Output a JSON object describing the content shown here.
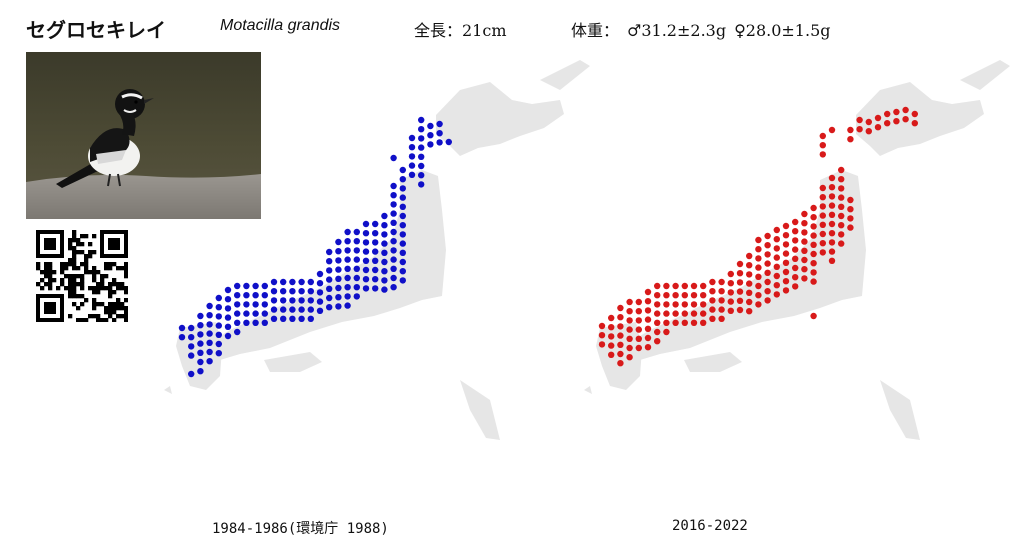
{
  "species": {
    "japanese_name": "セグロセキレイ",
    "scientific_name": "Motacilla grandis",
    "length": "全長：21cm",
    "weight_label": "体重：",
    "weight_male": "♂31.2±2.3g",
    "weight_female": "♀28.0±1.5g"
  },
  "maps": [
    {
      "caption": "1984-1986(環境庁 1988)",
      "dot_color": "#1010c8"
    },
    {
      "caption": "2016-2022",
      "dot_color": "#d81a1a"
    }
  ],
  "colors": {
    "land": "#e6e6e6"
  }
}
